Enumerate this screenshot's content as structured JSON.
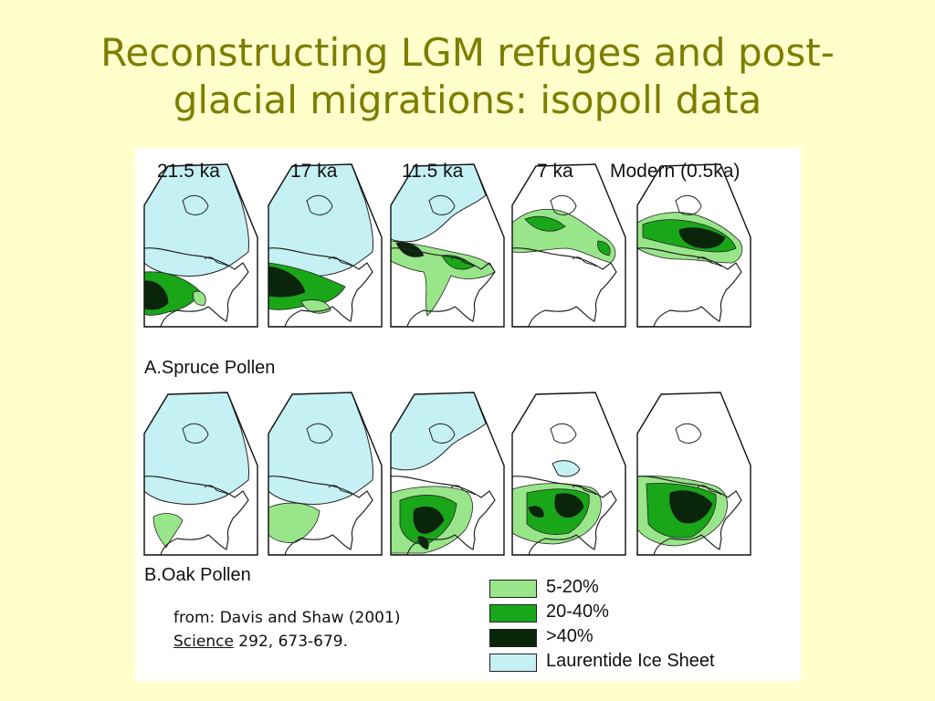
{
  "slide": {
    "title_line1": "Reconstructing LGM refuges and post-",
    "title_line2": "glacial migrations: isopoll data"
  },
  "figure": {
    "time_labels": [
      "21.5 ka",
      "17 ka",
      "11.5 ka",
      "7 ka",
      "Modern (0.5ka)"
    ],
    "panels": [
      {
        "label": "A.Spruce Pollen"
      },
      {
        "label": "B.Oak Pollen"
      }
    ],
    "legend": [
      {
        "label": "5-20%",
        "color": "#99e68a"
      },
      {
        "label": "20-40%",
        "color": "#19a719"
      },
      {
        "label": ">40%",
        "color": "#0a260a"
      },
      {
        "label": "Laurentide Ice Sheet",
        "color": "#c5f1f5"
      }
    ],
    "citation": {
      "line1": "from:  Davis and Shaw (2001)",
      "journal": "Science",
      "rest": " 292, 673-679."
    }
  },
  "colors": {
    "background": "#ffffcc",
    "title": "#7d7d00",
    "ice": "#c5f1f5",
    "light": "#99e68a",
    "medium": "#19a719",
    "dark": "#0a260a"
  }
}
